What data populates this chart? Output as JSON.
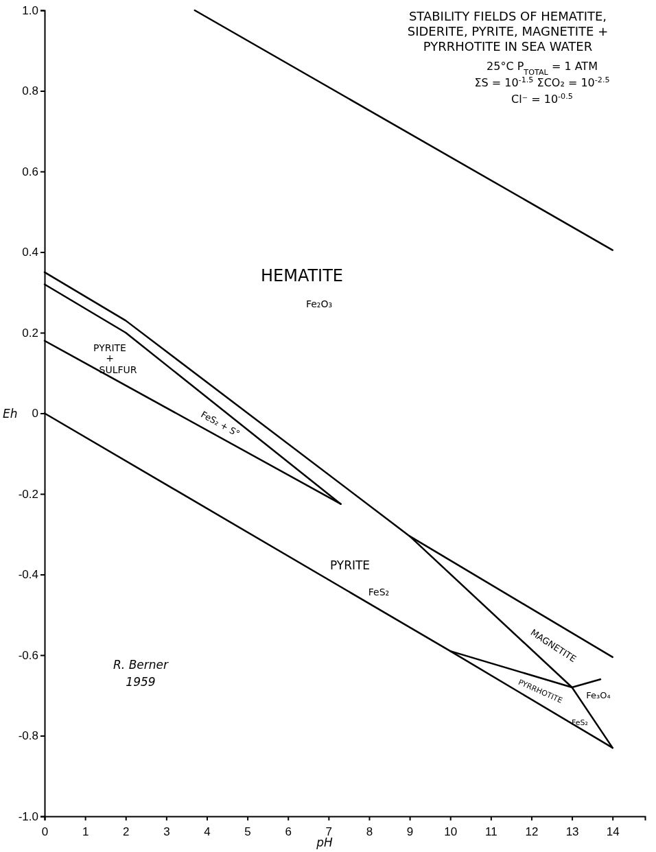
{
  "chart_data": {
    "type": "line",
    "title": "STABILITY FIELDS OF HEMATITE, SIDERITE, PYRITE, MAGNETITE + PYRRHOTITE IN SEA WATER",
    "xlabel": "pH",
    "ylabel": "Eh",
    "xlim": [
      0,
      14.8
    ],
    "ylim": [
      -1,
      1
    ],
    "xticks": [
      0,
      1,
      2,
      3,
      4,
      5,
      6,
      7,
      8,
      9,
      10,
      11,
      12,
      13,
      14
    ],
    "yticks": [
      {
        "value": -1,
        "label": "-1.0"
      },
      {
        "value": -0.8,
        "label": "-0.8"
      },
      {
        "value": -0.6,
        "label": "-0.6"
      },
      {
        "value": -0.4,
        "label": "-0.4"
      },
      {
        "value": -0.2,
        "label": "-0.2"
      },
      0,
      {
        "value": 0.2,
        "label": "0.2"
      },
      {
        "value": 0.4,
        "label": "0.4"
      },
      {
        "value": 0.6,
        "label": "0.6"
      },
      {
        "value": 0.8,
        "label": "0.8"
      },
      {
        "value": 1,
        "label": "1.0"
      }
    ],
    "grid": false,
    "marker": "none",
    "line_style": "solid",
    "series": [
      {
        "color": "#000000",
        "x": [
          3.7,
          14
        ],
        "values": [
          1.0,
          0.405
        ]
      },
      {
        "color": "#000000",
        "x": [
          0,
          2,
          9,
          14
        ],
        "values": [
          0.35,
          0.23,
          -0.305,
          -0.605
        ]
      },
      {
        "color": "#000000",
        "x": [
          0,
          2,
          7.3
        ],
        "values": [
          0.32,
          0.2,
          -0.225
        ]
      },
      {
        "color": "#000000",
        "x": [
          0,
          7.3
        ],
        "values": [
          0.18,
          -0.225
        ]
      },
      {
        "color": "#000000",
        "x": [
          0,
          10,
          14
        ],
        "values": [
          0,
          -0.59,
          -0.83
        ]
      },
      {
        "color": "#000000",
        "x": [
          9,
          13,
          14
        ],
        "values": [
          -0.305,
          -0.68,
          -0.83
        ]
      },
      {
        "color": "#000000",
        "x": [
          10,
          13,
          13.7
        ],
        "values": [
          -0.59,
          -0.68,
          -0.66
        ]
      }
    ],
    "annotations": [
      "25°C  P$_{TOTAL}$ = 1 ATM",
      "ΣS = 10$^{-1.5}$  ΣCO₂ = 10$^{-2.5}$",
      "Cl⁻ = 10$^{-0.5}$",
      "HEMATITE",
      "Fe₂O₃",
      "PYRITE",
      "+",
      "SULFUR",
      "FeS₂ + S°",
      "PYRITE",
      "FeS₂",
      "MAGNETITE",
      "PYRRHOTITE",
      "Fe₃O₄",
      "FeS₂",
      "R. Berner",
      "1959"
    ]
  }
}
